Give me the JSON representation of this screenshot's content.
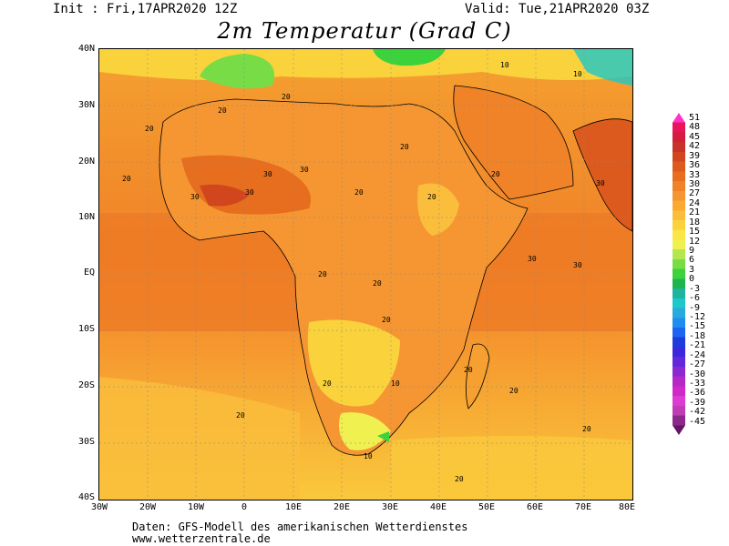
{
  "header": {
    "init": "Init : Fri,17APR2020 12Z",
    "valid": "Valid: Tue,21APR2020 03Z",
    "title": "2m Temperatur (Grad C)"
  },
  "axes": {
    "lat_labels": [
      "40N",
      "30N",
      "20N",
      "10N",
      "EQ",
      "10S",
      "20S",
      "30S",
      "40S"
    ],
    "lon_labels": [
      "30W",
      "20W",
      "10W",
      "0",
      "10E",
      "20E",
      "30E",
      "40E",
      "50E",
      "60E",
      "70E",
      "80E"
    ]
  },
  "legend": {
    "labels": [
      "51",
      "48",
      "45",
      "42",
      "39",
      "36",
      "33",
      "30",
      "27",
      "24",
      "21",
      "18",
      "15",
      "12",
      "9",
      "6",
      "3",
      "0",
      "-3",
      "-6",
      "-9",
      "-12",
      "-15",
      "-18",
      "-21",
      "-24",
      "-27",
      "-30",
      "-33",
      "-36",
      "-39",
      "-42",
      "-45"
    ],
    "colors": [
      "#ff33cc",
      "#e8155a",
      "#d21e3c",
      "#c83228",
      "#d2461e",
      "#dc5a1e",
      "#e66e1e",
      "#f08228",
      "#f59632",
      "#faaa32",
      "#fabe3c",
      "#fad23c",
      "#fae646",
      "#f0f050",
      "#b4e650",
      "#78dc46",
      "#3cd23c",
      "#1eb450",
      "#1eb4a0",
      "#1ec8c8",
      "#28aadc",
      "#1e8cf0",
      "#1e64f0",
      "#1e3cdc",
      "#3c28dc",
      "#6428dc",
      "#8c28d2",
      "#b428c8",
      "#d228c8",
      "#dc3cd2",
      "#be3cb4",
      "#8c288c",
      "#641464"
    ]
  },
  "map": {
    "contour_label": "20",
    "hot_label": "30",
    "cool_label": "10"
  },
  "footer": {
    "line1": "Daten: GFS-Modell des amerikanischen Wetterdienstes",
    "line2": "www.wetterzentrale.de"
  }
}
